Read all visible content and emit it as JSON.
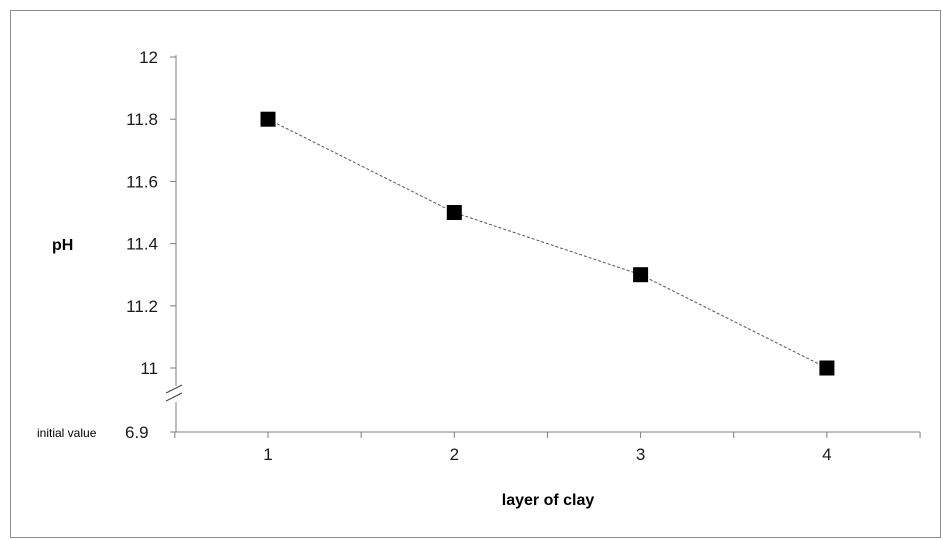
{
  "chart_data": {
    "type": "line",
    "x": [
      1,
      2,
      3,
      4
    ],
    "series": [
      {
        "values": [
          11.8,
          11.5,
          11.3,
          11.0
        ]
      }
    ],
    "xlabel": "layer of clay",
    "ylabel": "pH",
    "xticks": [
      "1",
      "2",
      "3",
      "4"
    ],
    "yticks": [
      "11",
      "11.2",
      "11.4",
      "11.6",
      "11.8",
      "12"
    ],
    "ylim": [
      11,
      12
    ],
    "xlim": [
      0.5,
      4.5
    ],
    "axis_break": true,
    "baseline": {
      "label": "initial value",
      "value": "6.9"
    },
    "grid": false,
    "marker": "square",
    "line_style": "dashed",
    "colors": {
      "marker": "#000000",
      "line": "#555555",
      "axis": "#7f7f7f"
    }
  }
}
